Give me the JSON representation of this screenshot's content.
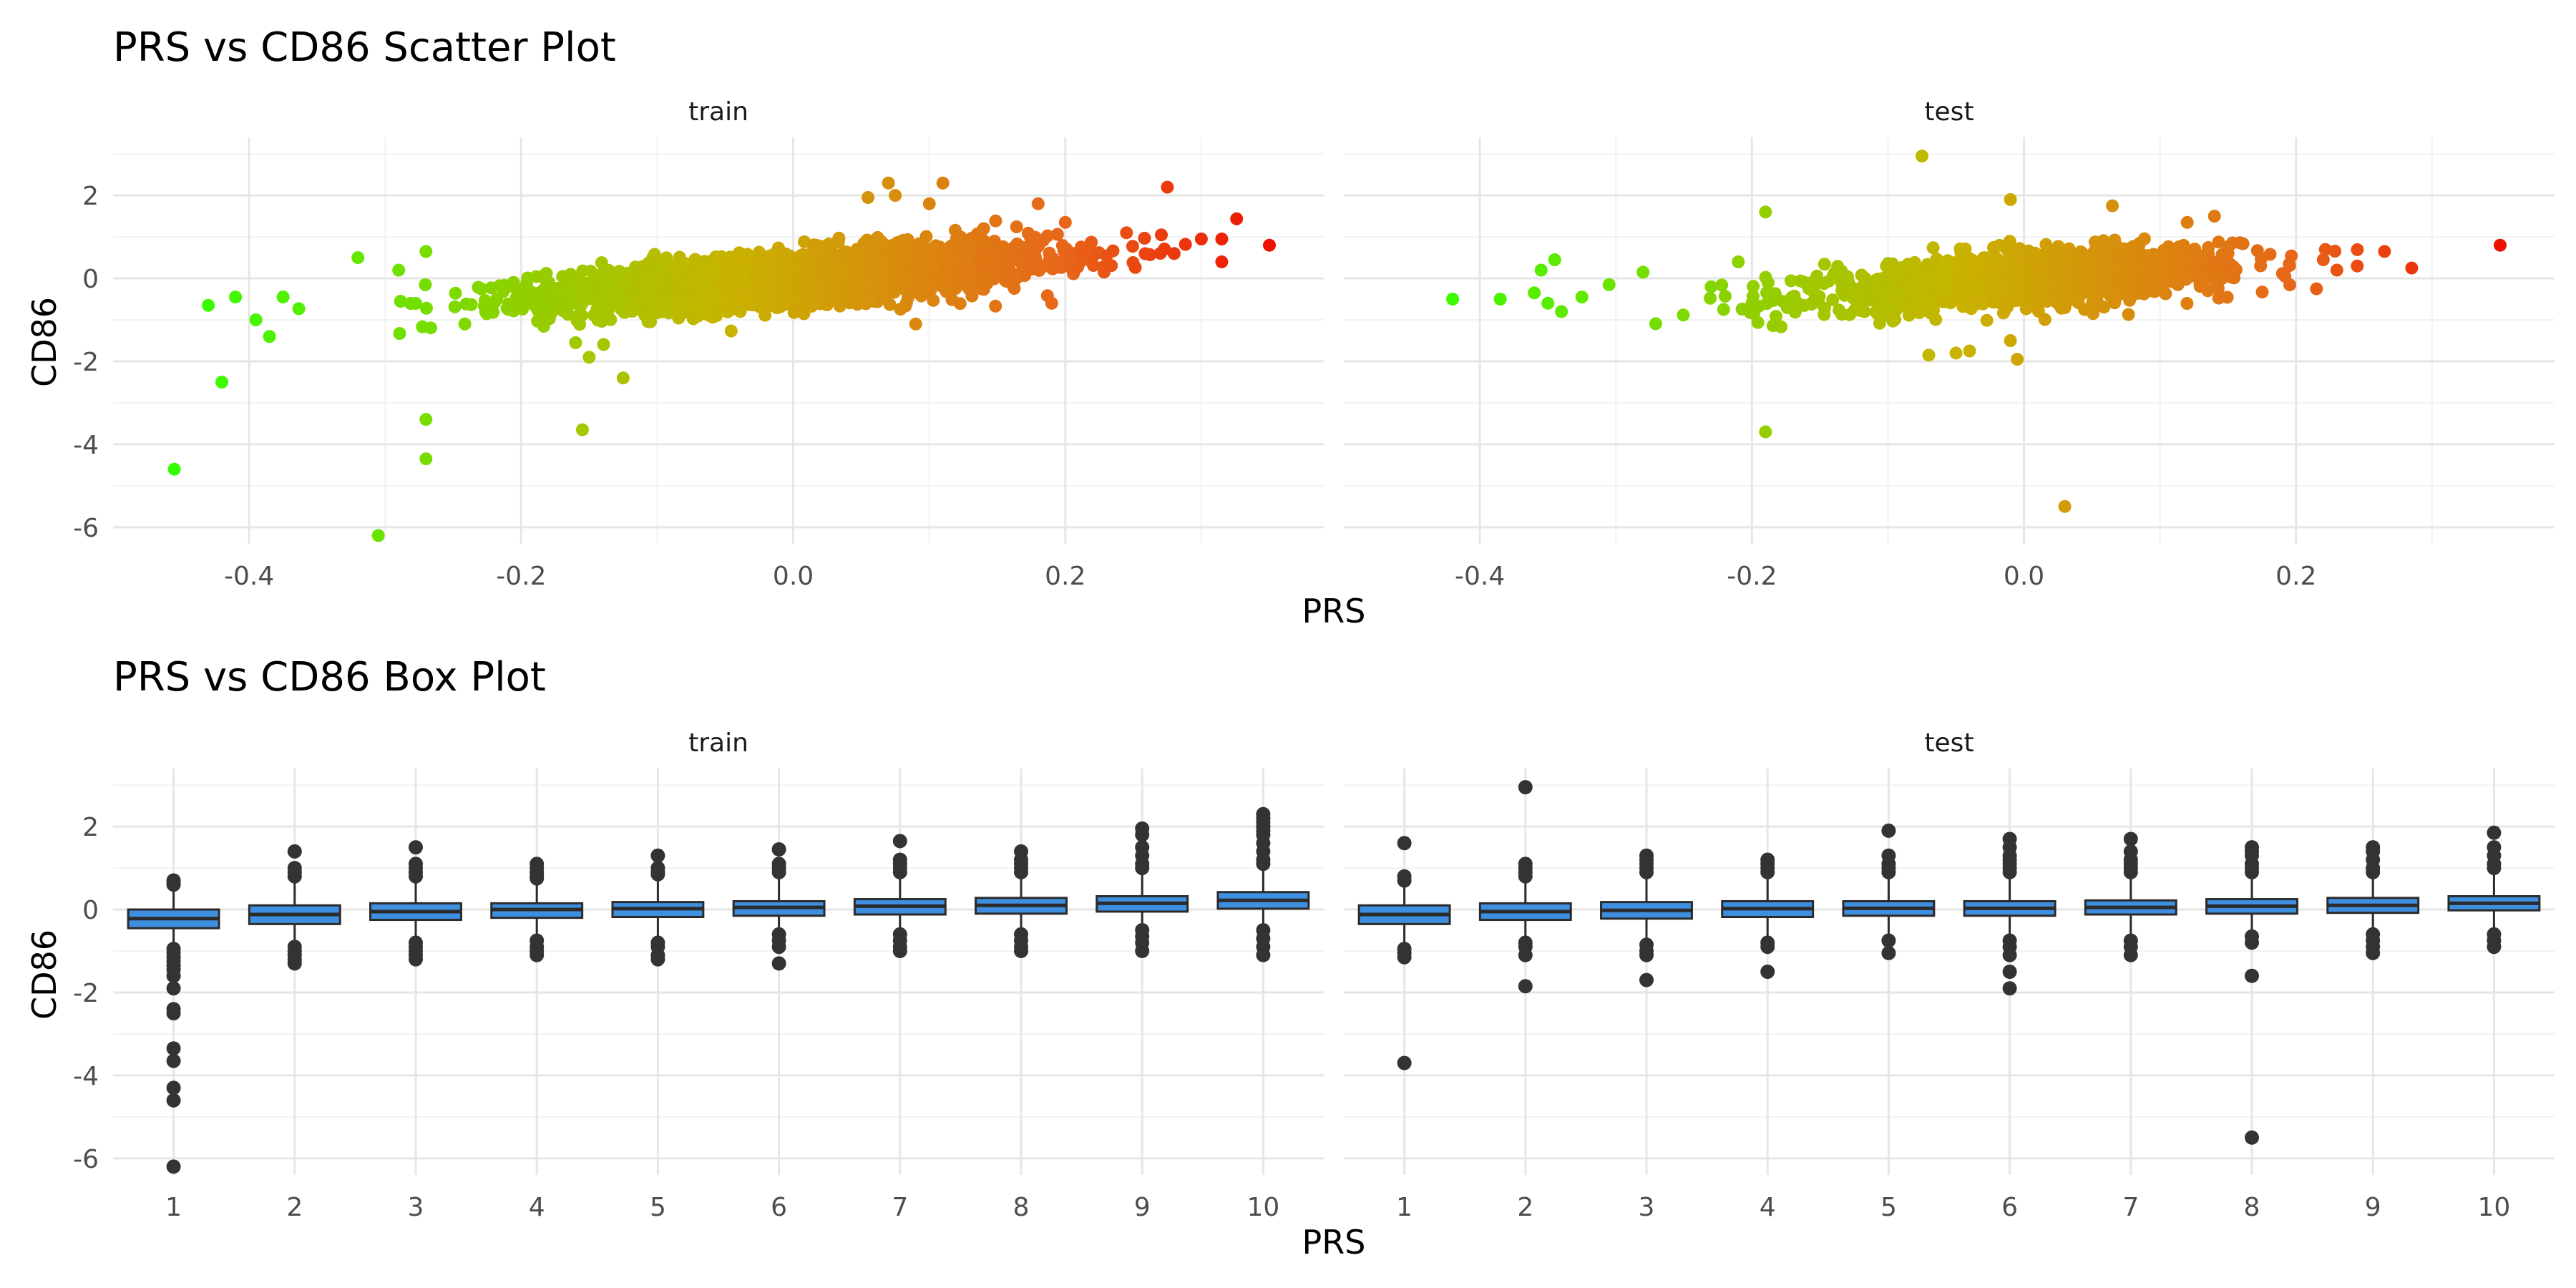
{
  "colors": {
    "low": "#33ff00",
    "mid": "#c8b400",
    "high": "#e8651a",
    "top": "#ee1100",
    "box_fill": "#3f8fe0",
    "box_line": "#2b2b2b",
    "outlier": "#333333"
  },
  "chart_data": [
    {
      "type": "scatter",
      "title": "PRS vs CD86 Scatter Plot",
      "xlabel": "PRS",
      "ylabel": "CD86",
      "xlim": [
        -0.5,
        0.39
      ],
      "ylim": [
        -6.4,
        3.4
      ],
      "x_ticks": [
        "-0.4",
        "-0.2",
        "0.0",
        "0.2"
      ],
      "y_ticks": [
        "2",
        "0",
        "-2",
        "-4",
        "-6"
      ],
      "x_tick_values": [
        -0.4,
        -0.2,
        0.0,
        0.2
      ],
      "y_tick_values": [
        2,
        0,
        -2,
        -4,
        -6
      ],
      "grid": true,
      "color_by": "PRS (green low → red high)",
      "panels": [
        {
          "name": "train",
          "trend": {
            "slope": 2.4,
            "n": 3000,
            "x_mean": 0.0,
            "x_sd": 0.09,
            "y_sd": 0.3
          },
          "points": [
            [
              -0.455,
              -4.6
            ],
            [
              -0.42,
              -2.5
            ],
            [
              -0.305,
              -6.2
            ],
            [
              -0.27,
              -3.4
            ],
            [
              -0.27,
              -4.35
            ],
            [
              -0.155,
              -3.65
            ],
            [
              -0.125,
              -2.4
            ],
            [
              -0.43,
              -0.65
            ],
            [
              -0.41,
              -0.45
            ],
            [
              -0.395,
              -1.0
            ],
            [
              -0.385,
              -1.4
            ],
            [
              -0.375,
              -0.45
            ],
            [
              -0.32,
              0.5
            ],
            [
              -0.29,
              0.2
            ],
            [
              -0.27,
              0.65
            ],
            [
              -0.15,
              -1.9
            ],
            [
              -0.16,
              -1.55
            ],
            [
              0.07,
              2.3
            ],
            [
              0.075,
              2.0
            ],
            [
              0.11,
              2.3
            ],
            [
              0.1,
              1.8
            ],
            [
              0.055,
              1.95
            ],
            [
              0.18,
              1.8
            ],
            [
              0.275,
              2.2
            ],
            [
              0.245,
              1.1
            ],
            [
              0.3,
              0.95
            ],
            [
              0.315,
              0.95
            ],
            [
              0.315,
              0.4
            ],
            [
              0.35,
              0.8
            ],
            [
              0.19,
              -0.6
            ],
            [
              0.14,
              1.2
            ],
            [
              0.09,
              -1.1
            ],
            [
              0.12,
              0.95
            ],
            [
              0.2,
              1.35
            ],
            [
              0.28,
              0.6
            ]
          ]
        },
        {
          "name": "test",
          "trend": {
            "slope": 2.4,
            "n": 1500,
            "x_mean": 0.0,
            "x_sd": 0.075,
            "y_sd": 0.3
          },
          "points": [
            [
              -0.42,
              -0.5
            ],
            [
              -0.385,
              -0.5
            ],
            [
              -0.36,
              -0.35
            ],
            [
              -0.355,
              0.2
            ],
            [
              -0.345,
              0.45
            ],
            [
              -0.35,
              -0.6
            ],
            [
              -0.34,
              -0.8
            ],
            [
              -0.325,
              -0.45
            ],
            [
              -0.305,
              -0.15
            ],
            [
              -0.28,
              0.15
            ],
            [
              -0.075,
              2.95
            ],
            [
              -0.19,
              1.6
            ],
            [
              -0.19,
              -3.7
            ],
            [
              0.03,
              -5.5
            ],
            [
              -0.07,
              -1.85
            ],
            [
              -0.04,
              -1.75
            ],
            [
              -0.01,
              -1.5
            ],
            [
              -0.005,
              -1.95
            ],
            [
              -0.05,
              -1.8
            ],
            [
              0.065,
              1.75
            ],
            [
              0.14,
              1.5
            ],
            [
              0.12,
              1.35
            ],
            [
              -0.01,
              1.9
            ],
            [
              0.22,
              0.45
            ],
            [
              0.245,
              0.3
            ],
            [
              0.265,
              0.65
            ],
            [
              0.285,
              0.25
            ],
            [
              0.35,
              0.8
            ],
            [
              0.215,
              -0.25
            ],
            [
              0.195,
              0.35
            ],
            [
              0.23,
              0.2
            ],
            [
              -0.21,
              0.4
            ],
            [
              -0.2,
              -0.6
            ],
            [
              -0.23,
              -0.2
            ],
            [
              0.15,
              0.6
            ]
          ]
        }
      ]
    },
    {
      "type": "box",
      "title": "PRS vs CD86 Box Plot",
      "xlabel": "PRS",
      "ylabel": "CD86",
      "categories": [
        "1",
        "2",
        "3",
        "4",
        "5",
        "6",
        "7",
        "8",
        "9",
        "10"
      ],
      "ylim": [
        -6.4,
        3.4
      ],
      "y_ticks": [
        "2",
        "0",
        "-2",
        "-4",
        "-6"
      ],
      "y_tick_values": [
        2,
        0,
        -2,
        -4,
        -6
      ],
      "grid": true,
      "panels": [
        {
          "name": "train",
          "boxes": [
            {
              "q1": -0.45,
              "median": -0.22,
              "q3": 0.0,
              "lo": -0.9,
              "hi": 0.55,
              "outliers": [
                0.7,
                0.65,
                0.6,
                -0.95,
                -1.05,
                -1.15,
                -1.25,
                -1.35,
                -1.45,
                -1.6,
                -1.9,
                -2.4,
                -2.5,
                -3.35,
                -3.65,
                -4.3,
                -4.6,
                -6.2
              ]
            },
            {
              "q1": -0.35,
              "median": -0.12,
              "q3": 0.1,
              "lo": -0.8,
              "hi": 0.7,
              "outliers": [
                1.4,
                1.0,
                0.9,
                0.8,
                -0.9,
                -1.0,
                -1.1,
                -1.2,
                -1.3
              ]
            },
            {
              "q1": -0.25,
              "median": -0.05,
              "q3": 0.15,
              "lo": -0.75,
              "hi": 0.75,
              "outliers": [
                1.5,
                1.1,
                1.0,
                0.9,
                0.8,
                -0.8,
                -0.9,
                -1.0,
                -1.1,
                -1.2
              ]
            },
            {
              "q1": -0.2,
              "median": 0.0,
              "q3": 0.15,
              "lo": -0.7,
              "hi": 0.7,
              "outliers": [
                1.1,
                1.0,
                0.9,
                0.8,
                0.75,
                -0.75,
                -0.9,
                -1.0,
                -1.1
              ]
            },
            {
              "q1": -0.18,
              "median": 0.02,
              "q3": 0.18,
              "lo": -0.7,
              "hi": 0.75,
              "outliers": [
                1.3,
                1.0,
                0.9,
                0.85,
                -0.8,
                -0.9,
                -1.1,
                -1.2
              ]
            },
            {
              "q1": -0.15,
              "median": 0.05,
              "q3": 0.2,
              "lo": -0.65,
              "hi": 0.8,
              "outliers": [
                1.45,
                1.1,
                1.0,
                0.9,
                -0.6,
                -0.75,
                -0.9,
                -1.3
              ]
            },
            {
              "q1": -0.12,
              "median": 0.08,
              "q3": 0.25,
              "lo": -0.6,
              "hi": 0.85,
              "outliers": [
                1.65,
                1.2,
                1.1,
                1.0,
                0.9,
                -0.6,
                -0.75,
                -0.9,
                -1.0
              ]
            },
            {
              "q1": -0.1,
              "median": 0.1,
              "q3": 0.28,
              "lo": -0.6,
              "hi": 0.85,
              "outliers": [
                1.4,
                1.2,
                1.1,
                1.0,
                0.9,
                -0.6,
                -0.75,
                -0.9,
                -1.0
              ]
            },
            {
              "q1": -0.05,
              "median": 0.15,
              "q3": 0.32,
              "lo": -0.5,
              "hi": 0.9,
              "outliers": [
                1.95,
                1.8,
                1.5,
                1.3,
                1.1,
                1.0,
                -0.5,
                -0.65,
                -0.8,
                -1.0
              ]
            },
            {
              "q1": 0.02,
              "median": 0.22,
              "q3": 0.42,
              "lo": -0.45,
              "hi": 1.0,
              "outliers": [
                2.3,
                2.2,
                2.1,
                2.0,
                1.9,
                1.8,
                1.6,
                1.4,
                1.2,
                1.1,
                -0.5,
                -0.7,
                -0.9,
                -1.1
              ]
            }
          ]
        },
        {
          "name": "test",
          "boxes": [
            {
              "q1": -0.35,
              "median": -0.12,
              "q3": 0.1,
              "lo": -0.8,
              "hi": 0.6,
              "outliers": [
                1.6,
                0.8,
                0.7,
                -0.95,
                -1.05,
                -1.15,
                -3.7
              ]
            },
            {
              "q1": -0.25,
              "median": -0.05,
              "q3": 0.15,
              "lo": -0.75,
              "hi": 0.7,
              "outliers": [
                2.95,
                1.1,
                1.0,
                0.9,
                0.8,
                -0.8,
                -0.9,
                -1.1,
                -1.85
              ]
            },
            {
              "q1": -0.22,
              "median": -0.02,
              "q3": 0.18,
              "lo": -0.75,
              "hi": 0.75,
              "outliers": [
                1.3,
                1.2,
                1.1,
                1.0,
                0.9,
                -0.85,
                -1.0,
                -1.1,
                -1.7
              ]
            },
            {
              "q1": -0.18,
              "median": 0.02,
              "q3": 0.2,
              "lo": -0.7,
              "hi": 0.75,
              "outliers": [
                1.2,
                1.1,
                1.0,
                0.9,
                -0.8,
                -0.9,
                -1.5
              ]
            },
            {
              "q1": -0.15,
              "median": 0.03,
              "q3": 0.2,
              "lo": -0.7,
              "hi": 0.75,
              "outliers": [
                1.9,
                1.3,
                1.1,
                1.0,
                0.9,
                -0.75,
                -1.05
              ]
            },
            {
              "q1": -0.15,
              "median": 0.03,
              "q3": 0.2,
              "lo": -0.7,
              "hi": 0.75,
              "outliers": [
                1.7,
                1.5,
                1.3,
                1.2,
                1.1,
                1.0,
                0.9,
                -0.75,
                -0.9,
                -1.1,
                -1.5,
                -1.9
              ]
            },
            {
              "q1": -0.12,
              "median": 0.05,
              "q3": 0.22,
              "lo": -0.65,
              "hi": 0.75,
              "outliers": [
                1.7,
                1.4,
                1.2,
                1.1,
                1.0,
                0.9,
                -0.75,
                -0.9,
                -1.1
              ]
            },
            {
              "q1": -0.1,
              "median": 0.08,
              "q3": 0.25,
              "lo": -0.6,
              "hi": 0.8,
              "outliers": [
                1.5,
                1.4,
                1.3,
                1.1,
                1.0,
                0.9,
                -0.65,
                -0.8,
                -1.6,
                -5.5
              ]
            },
            {
              "q1": -0.08,
              "median": 0.1,
              "q3": 0.28,
              "lo": -0.6,
              "hi": 0.8,
              "outliers": [
                1.5,
                1.4,
                1.2,
                1.0,
                0.9,
                -0.6,
                -0.75,
                -0.9,
                -1.05
              ]
            },
            {
              "q1": -0.02,
              "median": 0.15,
              "q3": 0.32,
              "lo": -0.55,
              "hi": 0.85,
              "outliers": [
                1.85,
                1.5,
                1.3,
                1.1,
                1.0,
                -0.6,
                -0.75,
                -0.9
              ]
            }
          ]
        }
      ]
    }
  ]
}
